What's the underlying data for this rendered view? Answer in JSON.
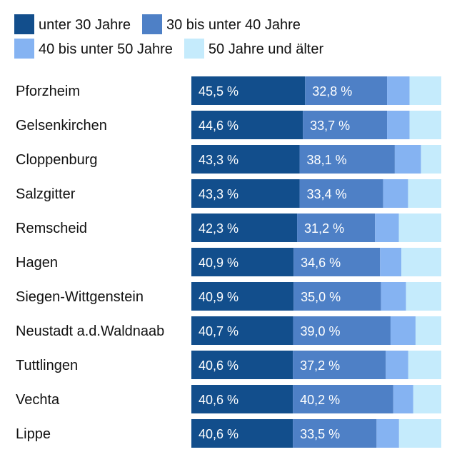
{
  "chart_data": {
    "type": "bar",
    "orientation": "horizontal",
    "stacked": true,
    "normalized": true,
    "categories": [
      "Pforzheim",
      "Gelsenkirchen",
      "Cloppenburg",
      "Salzgitter",
      "Remscheid",
      "Hagen",
      "Siegen-Wittgenstein",
      "Neustadt a.d.Waldnaab",
      "Tuttlingen",
      "Vechta",
      "Lippe"
    ],
    "series": [
      {
        "name": "unter 30 Jahre",
        "color": "#124e8c",
        "values": [
          45.5,
          44.6,
          43.3,
          43.3,
          42.3,
          40.9,
          40.9,
          40.7,
          40.6,
          40.6,
          40.6
        ],
        "labels": [
          "45,5 %",
          "44,6 %",
          "43,3 %",
          "43,3 %",
          "42,3 %",
          "40,9 %",
          "40,9 %",
          "40,7 %",
          "40,6 %",
          "40,6 %",
          "40,6 %"
        ]
      },
      {
        "name": "30 bis unter 40 Jahre",
        "color": "#4e80c6",
        "values": [
          32.8,
          33.7,
          38.1,
          33.4,
          31.2,
          34.6,
          35.0,
          39.0,
          37.2,
          40.2,
          33.5
        ],
        "labels": [
          "32,8 %",
          "33,7 %",
          "38,1 %",
          "33,4 %",
          "31,2 %",
          "34,6 %",
          "35,0 %",
          "39,0 %",
          "37,2 %",
          "40,2 %",
          "33,5 %"
        ]
      },
      {
        "name": "40 bis unter 50 Jahre",
        "color": "#85b3f2",
        "values": [
          9.0,
          9.0,
          10.5,
          10.0,
          9.5,
          8.5,
          10.0,
          10.0,
          9.0,
          8.0,
          9.0
        ]
      },
      {
        "name": "50 Jahre und älter",
        "color": "#c5ebfc",
        "values": [
          12.7,
          12.7,
          8.1,
          13.3,
          17.0,
          16.0,
          14.1,
          10.3,
          13.2,
          11.2,
          16.9
        ]
      }
    ],
    "xlim": [
      0,
      100
    ],
    "legend_position": "top"
  }
}
